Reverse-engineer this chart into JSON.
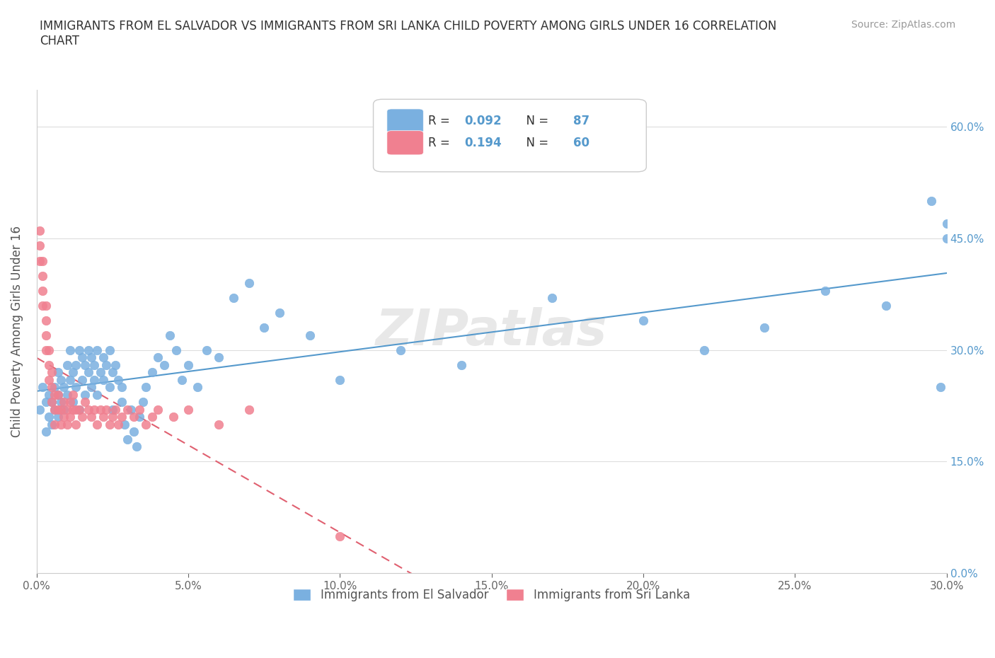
{
  "title": "IMMIGRANTS FROM EL SALVADOR VS IMMIGRANTS FROM SRI LANKA CHILD POVERTY AMONG GIRLS UNDER 16 CORRELATION\nCHART",
  "source": "Source: ZipAtlas.com",
  "ylabel": "Child Poverty Among Girls Under 16",
  "xlabel": "",
  "watermark": "ZIPatlas",
  "legend_entries": [
    {
      "label": "R =  0.092   N = 87",
      "color": "#a8c8f0"
    },
    {
      "label": "R =  0.194   N = 60",
      "color": "#f5a0b0"
    }
  ],
  "legend_bottom": [
    {
      "label": "Immigrants from El Salvador",
      "color": "#a8c8f0"
    },
    {
      "label": "Immigrants from Sri Lanka",
      "color": "#f5a0b0"
    }
  ],
  "el_salvador": {
    "color": "#7ab0e0",
    "trend_color": "#5599cc",
    "R": 0.092,
    "N": 87,
    "x": [
      0.001,
      0.002,
      0.003,
      0.003,
      0.004,
      0.004,
      0.005,
      0.005,
      0.006,
      0.006,
      0.007,
      0.007,
      0.007,
      0.008,
      0.008,
      0.009,
      0.009,
      0.01,
      0.01,
      0.011,
      0.011,
      0.012,
      0.012,
      0.013,
      0.013,
      0.014,
      0.014,
      0.015,
      0.015,
      0.016,
      0.016,
      0.017,
      0.017,
      0.018,
      0.018,
      0.019,
      0.019,
      0.02,
      0.02,
      0.021,
      0.022,
      0.022,
      0.023,
      0.024,
      0.024,
      0.025,
      0.025,
      0.026,
      0.027,
      0.028,
      0.028,
      0.029,
      0.03,
      0.031,
      0.032,
      0.033,
      0.034,
      0.035,
      0.036,
      0.038,
      0.04,
      0.042,
      0.044,
      0.046,
      0.048,
      0.05,
      0.053,
      0.056,
      0.06,
      0.065,
      0.07,
      0.075,
      0.08,
      0.09,
      0.1,
      0.12,
      0.14,
      0.17,
      0.2,
      0.22,
      0.24,
      0.26,
      0.28,
      0.295,
      0.298,
      0.3,
      0.3
    ],
    "y": [
      0.22,
      0.25,
      0.19,
      0.23,
      0.21,
      0.24,
      0.2,
      0.23,
      0.22,
      0.25,
      0.27,
      0.24,
      0.21,
      0.26,
      0.23,
      0.25,
      0.22,
      0.28,
      0.24,
      0.3,
      0.26,
      0.27,
      0.23,
      0.25,
      0.28,
      0.3,
      0.22,
      0.29,
      0.26,
      0.28,
      0.24,
      0.3,
      0.27,
      0.25,
      0.29,
      0.28,
      0.26,
      0.3,
      0.24,
      0.27,
      0.29,
      0.26,
      0.28,
      0.25,
      0.3,
      0.27,
      0.22,
      0.28,
      0.26,
      0.23,
      0.25,
      0.2,
      0.18,
      0.22,
      0.19,
      0.17,
      0.21,
      0.23,
      0.25,
      0.27,
      0.29,
      0.28,
      0.32,
      0.3,
      0.26,
      0.28,
      0.25,
      0.3,
      0.29,
      0.37,
      0.39,
      0.33,
      0.35,
      0.32,
      0.26,
      0.3,
      0.28,
      0.37,
      0.34,
      0.3,
      0.33,
      0.38,
      0.36,
      0.5,
      0.25,
      0.47,
      0.45
    ]
  },
  "sri_lanka": {
    "color": "#f08090",
    "trend_color": "#e06070",
    "R": 0.194,
    "N": 60,
    "x": [
      0.001,
      0.001,
      0.001,
      0.002,
      0.002,
      0.002,
      0.002,
      0.003,
      0.003,
      0.003,
      0.003,
      0.004,
      0.004,
      0.004,
      0.005,
      0.005,
      0.005,
      0.006,
      0.006,
      0.006,
      0.007,
      0.007,
      0.008,
      0.008,
      0.009,
      0.009,
      0.01,
      0.01,
      0.011,
      0.011,
      0.012,
      0.012,
      0.013,
      0.013,
      0.014,
      0.015,
      0.016,
      0.017,
      0.018,
      0.019,
      0.02,
      0.021,
      0.022,
      0.023,
      0.024,
      0.025,
      0.026,
      0.027,
      0.028,
      0.03,
      0.032,
      0.034,
      0.036,
      0.038,
      0.04,
      0.045,
      0.05,
      0.06,
      0.07,
      0.1
    ],
    "y": [
      0.42,
      0.44,
      0.46,
      0.4,
      0.42,
      0.38,
      0.36,
      0.34,
      0.36,
      0.32,
      0.3,
      0.28,
      0.3,
      0.26,
      0.25,
      0.27,
      0.23,
      0.24,
      0.22,
      0.2,
      0.22,
      0.24,
      0.2,
      0.22,
      0.21,
      0.23,
      0.22,
      0.2,
      0.21,
      0.23,
      0.22,
      0.24,
      0.22,
      0.2,
      0.22,
      0.21,
      0.23,
      0.22,
      0.21,
      0.22,
      0.2,
      0.22,
      0.21,
      0.22,
      0.2,
      0.21,
      0.22,
      0.2,
      0.21,
      0.22,
      0.21,
      0.22,
      0.2,
      0.21,
      0.22,
      0.21,
      0.22,
      0.2,
      0.22,
      0.05
    ]
  },
  "xlim": [
    0.0,
    0.3
  ],
  "ylim": [
    0.0,
    0.65
  ],
  "xticks": [
    0.0,
    0.05,
    0.1,
    0.15,
    0.2,
    0.25,
    0.3
  ],
  "yticks": [
    0.0,
    0.15,
    0.3,
    0.45,
    0.6
  ],
  "ytick_labels": [
    "0.0%",
    "15.0%",
    "30.0%",
    "45.0%",
    "60.0%"
  ],
  "xtick_labels": [
    "0.0%",
    "5.0%",
    "10.0%",
    "15.0%",
    "20.0%",
    "25.0%",
    "30.0%"
  ],
  "background_color": "#ffffff",
  "grid_color": "#dddddd",
  "axis_color": "#cccccc",
  "title_color": "#333333",
  "source_color": "#999999",
  "watermark_color": "#e8e8e8",
  "right_tick_color": "#5599cc"
}
